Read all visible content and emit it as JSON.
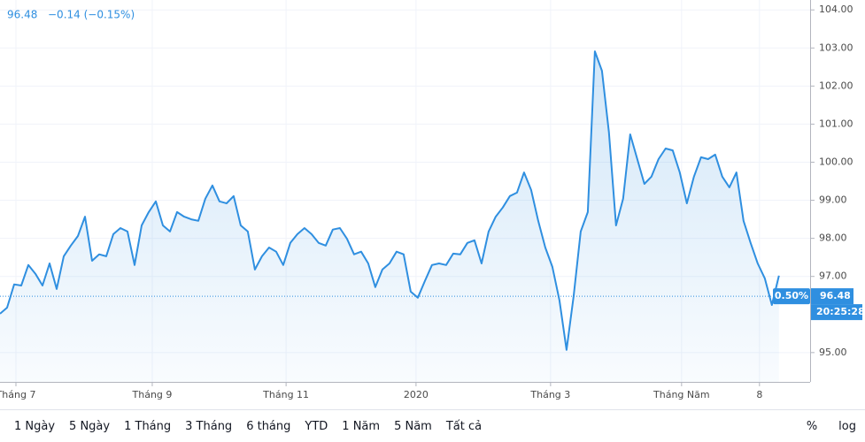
{
  "chart_data": {
    "type": "line",
    "legend_price": "96.48",
    "legend_change": "−0.14 (−0.15%)",
    "series": [
      {
        "color": "#2f8fe0",
        "values": [
          96.02,
          96.18,
          96.79,
          96.76,
          97.3,
          97.07,
          96.76,
          97.34,
          96.67,
          97.53,
          97.81,
          98.06,
          98.57,
          97.41,
          97.58,
          97.53,
          98.11,
          98.27,
          98.18,
          97.3,
          98.34,
          98.69,
          98.97,
          98.34,
          98.18,
          98.69,
          98.57,
          98.5,
          98.46,
          99.04,
          99.39,
          98.97,
          98.92,
          99.11,
          98.34,
          98.18,
          97.18,
          97.53,
          97.76,
          97.65,
          97.3,
          97.88,
          98.11,
          98.27,
          98.11,
          97.88,
          97.81,
          98.23,
          98.27,
          97.99,
          97.58,
          97.65,
          97.34,
          96.72,
          97.18,
          97.34,
          97.65,
          97.58,
          96.6,
          96.44,
          96.88,
          97.3,
          97.34,
          97.3,
          97.6,
          97.58,
          97.88,
          97.95,
          97.34,
          98.18,
          98.57,
          98.81,
          99.11,
          99.2,
          99.73,
          99.27,
          98.46,
          97.76,
          97.25,
          96.37,
          95.07,
          96.48,
          98.18,
          98.69,
          102.91,
          102.4,
          100.78,
          98.34,
          99.04,
          100.73,
          100.08,
          99.43,
          99.62,
          100.08,
          100.36,
          100.31,
          99.73,
          98.92,
          99.62,
          100.13,
          100.08,
          100.2,
          99.62,
          99.34,
          99.73,
          98.46,
          97.88,
          97.34,
          96.95,
          96.25,
          97.02
        ]
      }
    ],
    "last_price": 96.48,
    "change_label": "0.50%",
    "time_label": "20:25:28",
    "xlim": [
      0,
      114.4
    ],
    "xticks": [
      {
        "value": 2.25,
        "label": "Tháng 7"
      },
      {
        "value": 21.5,
        "label": "Tháng 9"
      },
      {
        "value": 40.4,
        "label": "Tháng 11"
      },
      {
        "value": 58.75,
        "label": "2020"
      },
      {
        "value": 77.75,
        "label": "Tháng 3"
      },
      {
        "value": 96.25,
        "label": "Tháng Năm"
      },
      {
        "value": 107.25,
        "label": "8"
      }
    ],
    "ylim": [
      94.23,
      104.26
    ],
    "yticks": [
      {
        "value": 95,
        "label": "95.00"
      },
      {
        "value": 97,
        "label": "97.00"
      },
      {
        "value": 98,
        "label": "98.00"
      },
      {
        "value": 99,
        "label": "99.00"
      },
      {
        "value": 100,
        "label": "100.00"
      },
      {
        "value": 101,
        "label": "101.00"
      },
      {
        "value": 102,
        "label": "102.00"
      },
      {
        "value": 103,
        "label": "103.00"
      },
      {
        "value": 104,
        "label": "104.00"
      }
    ],
    "grid": true
  },
  "toolbar": {
    "ranges": [
      "1 Ngày",
      "5 Ngày",
      "1 Tháng",
      "3 Tháng",
      "6 tháng",
      "YTD",
      "1 Năm",
      "5 Năm",
      "Tất cả"
    ],
    "options": [
      "%",
      "log"
    ]
  }
}
